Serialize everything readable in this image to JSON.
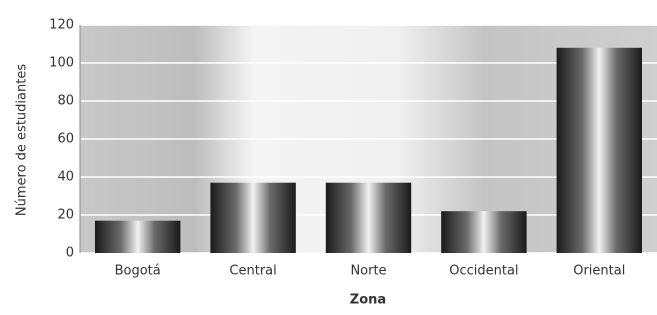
{
  "chart_data": {
    "type": "bar",
    "x_label": "Zona",
    "y_label": "Número de estudiantes",
    "categories": [
      "Bogotá",
      "Central",
      "Norte",
      "Occidental",
      "Oriental"
    ],
    "values": [
      17,
      37,
      37,
      22,
      108
    ],
    "ylim": [
      0,
      120
    ],
    "yticks": [
      0,
      20,
      40,
      60,
      80,
      100,
      120
    ],
    "grid": true
  }
}
